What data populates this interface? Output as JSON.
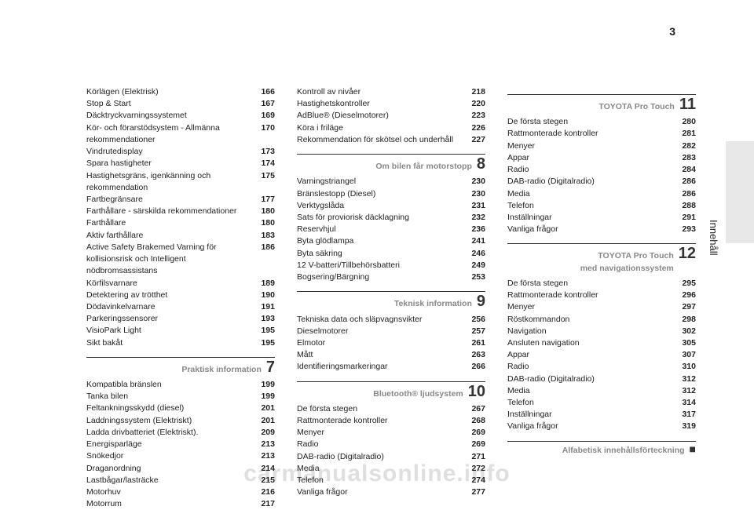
{
  "pageNumber": "3",
  "sideLabel": "Innehåll",
  "watermark": "carmanualsonline.info",
  "columns": [
    {
      "blocks": [
        {
          "type": "rows",
          "rows": [
            {
              "label": "Körlägen (Elektrisk)",
              "pg": "166"
            },
            {
              "label": "Stop & Start",
              "pg": "167"
            },
            {
              "label": "Däcktryckvarningssystemet",
              "pg": "169"
            },
            {
              "label": "Kör- och förarstödsystem - Allmänna rekommendationer",
              "pg": "170"
            },
            {
              "label": "Vindrutedisplay",
              "pg": "173"
            },
            {
              "label": "Spara hastigheter",
              "pg": "174"
            },
            {
              "label": "Hastighetsgräns, igenkänning och rekommendation",
              "pg": "175"
            },
            {
              "label": "Fartbegränsare",
              "pg": "177"
            },
            {
              "label": "Farthållare - särskilda rekommendationer",
              "pg": "180"
            },
            {
              "label": "Farthållare",
              "pg": "180"
            },
            {
              "label": "Aktiv farthållare",
              "pg": "183"
            },
            {
              "label": "Active Safety Brakemed Varning för kollisionsrisk och Intelligent nödbromsassistans",
              "pg": "186"
            },
            {
              "label": "Körfilsvarnare",
              "pg": "189"
            },
            {
              "label": "Detektering av trötthet",
              "pg": "190"
            },
            {
              "label": "Dödavinkelvarnare",
              "pg": "191"
            },
            {
              "label": "Parkeringssensorer",
              "pg": "193"
            },
            {
              "label": "VisioPark Light",
              "pg": "195"
            },
            {
              "label": "Sikt bakåt",
              "pg": "195"
            }
          ]
        },
        {
          "type": "section",
          "title": "Praktisk information",
          "num": "7"
        },
        {
          "type": "rows",
          "rows": [
            {
              "label": "Kompatibla bränslen",
              "pg": "199"
            },
            {
              "label": "Tanka bilen",
              "pg": "199"
            },
            {
              "label": "Feltankningsskydd (diesel)",
              "pg": "201"
            },
            {
              "label": "Laddningssystem (Elektriskt)",
              "pg": "201"
            },
            {
              "label": "Ladda drivbatteriet (Elektriskt).",
              "pg": "209"
            },
            {
              "label": "Energisparläge",
              "pg": "213"
            },
            {
              "label": "Snökedjor",
              "pg": "213"
            },
            {
              "label": "Draganordning",
              "pg": "214"
            },
            {
              "label": "Lastbågar/lasträcke",
              "pg": "215"
            },
            {
              "label": "Motorhuv",
              "pg": "216"
            },
            {
              "label": "Motorrum",
              "pg": "217"
            }
          ]
        }
      ]
    },
    {
      "blocks": [
        {
          "type": "rows",
          "rows": [
            {
              "label": "Kontroll av nivåer",
              "pg": "218"
            },
            {
              "label": "Hastighetskontroller",
              "pg": "220"
            },
            {
              "label": "AdBlue® (Dieselmotorer)",
              "pg": "223"
            },
            {
              "label": "Köra i friläge",
              "pg": "226"
            },
            {
              "label": "Rekommendation för skötsel och underhåll",
              "pg": "227"
            }
          ]
        },
        {
          "type": "section",
          "title": "Om bilen får motorstopp",
          "num": "8"
        },
        {
          "type": "rows",
          "rows": [
            {
              "label": "Varningstriangel",
              "pg": "230"
            },
            {
              "label": "Bränslestopp (Diesel)",
              "pg": "230"
            },
            {
              "label": "Verktygslåda",
              "pg": "231"
            },
            {
              "label": "Sats för proviorisk däcklagning",
              "pg": "232"
            },
            {
              "label": "Reservhjul",
              "pg": "236"
            },
            {
              "label": "Byta glödlampa",
              "pg": "241"
            },
            {
              "label": "Byta säkring",
              "pg": "246"
            },
            {
              "label": "12 V-batteri/Tillbehörsbatteri",
              "pg": "249"
            },
            {
              "label": "Bogsering/Bärgning",
              "pg": "253"
            }
          ]
        },
        {
          "type": "section",
          "title": "Teknisk information",
          "num": "9"
        },
        {
          "type": "rows",
          "rows": [
            {
              "label": "Tekniska data och släpvagnsvikter",
              "pg": "256"
            },
            {
              "label": "Dieselmotorer",
              "pg": "257"
            },
            {
              "label": "Elmotor",
              "pg": "261"
            },
            {
              "label": "Mått",
              "pg": "263"
            },
            {
              "label": "Identifieringsmarkeringar",
              "pg": "266"
            }
          ]
        },
        {
          "type": "section",
          "title": "Bluetooth® ljudsystem",
          "num": "10"
        },
        {
          "type": "rows",
          "rows": [
            {
              "label": "De första stegen",
              "pg": "267"
            },
            {
              "label": "Rattmonterade kontroller",
              "pg": "268"
            },
            {
              "label": "Menyer",
              "pg": "269"
            },
            {
              "label": "Radio",
              "pg": "269"
            },
            {
              "label": "DAB-radio (Digitalradio)",
              "pg": "271"
            },
            {
              "label": "Media",
              "pg": "272"
            },
            {
              "label": "Telefon",
              "pg": "274"
            },
            {
              "label": "Vanliga frågor",
              "pg": "277"
            }
          ]
        }
      ]
    },
    {
      "blocks": [
        {
          "type": "section",
          "title": "TOYOTA Pro Touch",
          "num": "11"
        },
        {
          "type": "rows",
          "rows": [
            {
              "label": "De första stegen",
              "pg": "280"
            },
            {
              "label": "Rattmonterade kontroller",
              "pg": "281"
            },
            {
              "label": "Menyer",
              "pg": "282"
            },
            {
              "label": "Appar",
              "pg": "283"
            },
            {
              "label": "Radio",
              "pg": "284"
            },
            {
              "label": "DAB-radio (Digitalradio)",
              "pg": "286"
            },
            {
              "label": "Media",
              "pg": "286"
            },
            {
              "label": "Telefon",
              "pg": "288"
            },
            {
              "label": "Inställningar",
              "pg": "291"
            },
            {
              "label": "Vanliga frågor",
              "pg": "293"
            }
          ]
        },
        {
          "type": "section",
          "title": "TOYOTA Pro Touch",
          "sub": "med navigationssystem",
          "num": "12"
        },
        {
          "type": "rows",
          "rows": [
            {
              "label": "De första stegen",
              "pg": "295"
            },
            {
              "label": "Rattmonterade kontroller",
              "pg": "296"
            },
            {
              "label": "Menyer",
              "pg": "297"
            },
            {
              "label": "Röstkommandon",
              "pg": "298"
            },
            {
              "label": "Navigation",
              "pg": "302"
            },
            {
              "label": "Ansluten navigation",
              "pg": "305"
            },
            {
              "label": "Appar",
              "pg": "307"
            },
            {
              "label": "Radio",
              "pg": "310"
            },
            {
              "label": "DAB-radio (Digitalradio)",
              "pg": "312"
            },
            {
              "label": "Media",
              "pg": "312"
            },
            {
              "label": "Telefon",
              "pg": "314"
            },
            {
              "label": "Inställningar",
              "pg": "317"
            },
            {
              "label": "Vanliga frågor",
              "pg": "319"
            }
          ]
        },
        {
          "type": "section",
          "title": "Alfabetisk innehållsförteckning",
          "num": "■",
          "numClass": "sq"
        }
      ]
    }
  ]
}
